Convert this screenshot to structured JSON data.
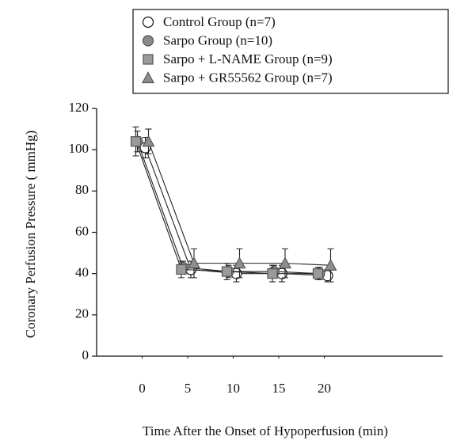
{
  "chart_data": {
    "type": "line",
    "x_label": "Time After the Onset of Hypoperfusion (min)",
    "y_label": "Coronary Perfusion Pressure ( mmHg)",
    "x": [
      0,
      5,
      10,
      15,
      20
    ],
    "xlim": [
      -5,
      33
    ],
    "xticks": [
      0,
      5,
      10,
      15,
      20
    ],
    "ylim": [
      0,
      120
    ],
    "yticks": [
      0,
      20,
      40,
      60,
      80,
      100,
      120
    ],
    "legend": "top-right",
    "series": [
      {
        "name": "Control Group (n=7)",
        "marker": "circle-open",
        "color": "#ffffff",
        "values": [
          101,
          42,
          40,
          40,
          39
        ],
        "errors": [
          5,
          4,
          4,
          4,
          3
        ]
      },
      {
        "name": "Sarpo Group (n=10)",
        "marker": "circle",
        "color": "#8a8a8a",
        "values": [
          104,
          43,
          41,
          41,
          40
        ],
        "errors": [
          5,
          3,
          3,
          3,
          3
        ]
      },
      {
        "name": "Sarpo + L-NAME Group (n=9)",
        "marker": "square",
        "color": "#9a9a9a",
        "values": [
          104,
          42,
          41,
          40,
          40
        ],
        "errors": [
          7,
          4,
          4,
          4,
          3
        ]
      },
      {
        "name": "Sarpo + GR55562 Group (n=7)",
        "marker": "triangle",
        "color": "#8f8f8f",
        "values": [
          104,
          45,
          45,
          45,
          44
        ],
        "errors": [
          6,
          7,
          7,
          7,
          8
        ]
      }
    ]
  }
}
